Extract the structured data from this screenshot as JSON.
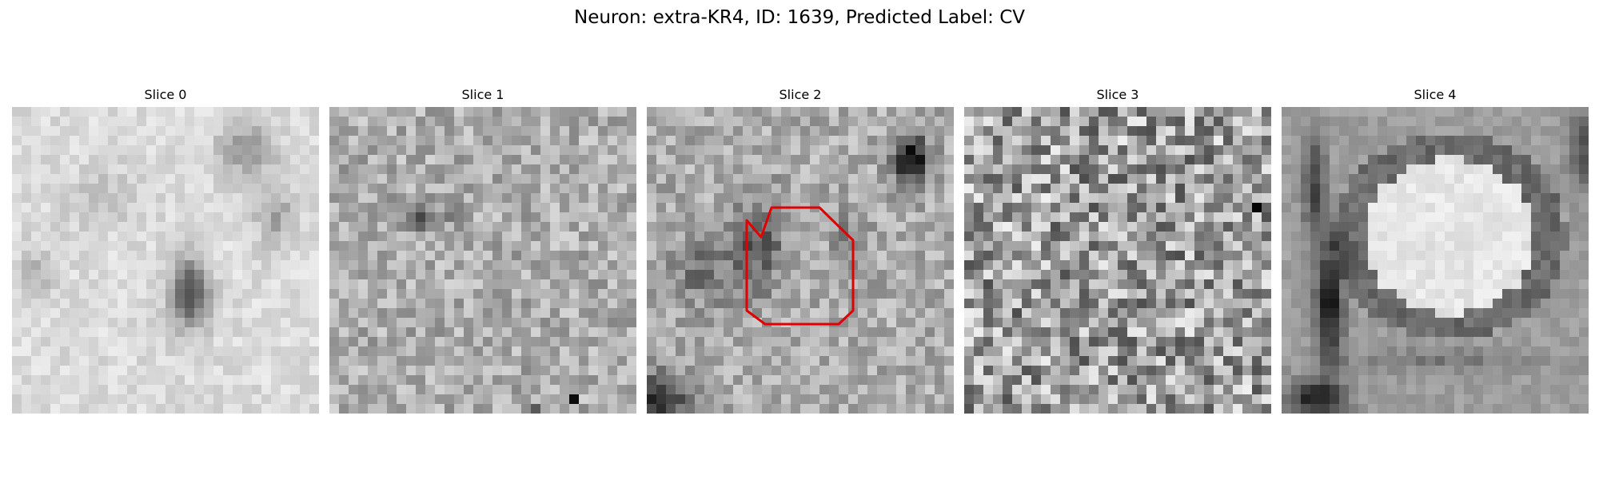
{
  "figure": {
    "title": "Neuron: extra-KR4, ID: 1639, Predicted Label: CV"
  },
  "panels": [
    {
      "title": "Slice 0",
      "has_outline": false
    },
    {
      "title": "Slice 1",
      "has_outline": false
    },
    {
      "title": "Slice 2",
      "has_outline": true
    },
    {
      "title": "Slice 3",
      "has_outline": false
    },
    {
      "title": "Slice 4",
      "has_outline": false
    }
  ],
  "colors": {
    "outline": "#e00000",
    "background": "#ffffff"
  },
  "image_style": "grayscale microscopy slices"
}
